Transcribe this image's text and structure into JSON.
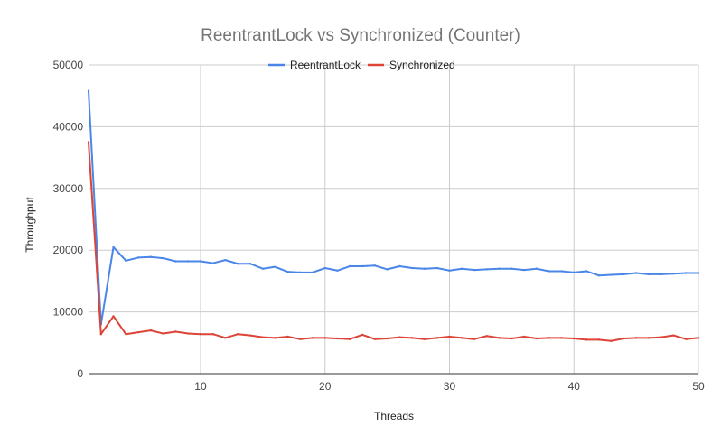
{
  "chart_data": {
    "type": "line",
    "title": "ReentrantLock vs Synchronized (Counter)",
    "xlabel": "Threads",
    "ylabel": "Throughput",
    "xlim": [
      1,
      50
    ],
    "ylim": [
      0,
      50000
    ],
    "x_ticks": [
      10,
      20,
      30,
      40,
      50
    ],
    "y_ticks": [
      0,
      10000,
      20000,
      30000,
      40000,
      50000
    ],
    "grid": true,
    "legend_position": "top-center",
    "x": [
      1,
      2,
      3,
      4,
      5,
      6,
      7,
      8,
      9,
      10,
      11,
      12,
      13,
      14,
      15,
      16,
      17,
      18,
      19,
      20,
      21,
      22,
      23,
      24,
      25,
      26,
      27,
      28,
      29,
      30,
      31,
      32,
      33,
      34,
      35,
      36,
      37,
      38,
      39,
      40,
      41,
      42,
      43,
      44,
      45,
      46,
      47,
      48,
      49,
      50
    ],
    "series": [
      {
        "name": "ReentrantLock",
        "color": "#4a86e8",
        "values": [
          45800,
          8000,
          20500,
          18300,
          18800,
          18900,
          18700,
          18200,
          18200,
          18200,
          17900,
          18400,
          17800,
          17800,
          17000,
          17300,
          16500,
          16400,
          16400,
          17100,
          16700,
          17400,
          17400,
          17500,
          16900,
          17400,
          17100,
          17000,
          17100,
          16700,
          17000,
          16800,
          16900,
          17000,
          17000,
          16800,
          17000,
          16600,
          16600,
          16400,
          16600,
          15900,
          16000,
          16100,
          16300,
          16100,
          16100,
          16200,
          16300,
          16300
        ]
      },
      {
        "name": "Synchronized",
        "color": "#db4437",
        "values": [
          37500,
          6400,
          9300,
          6400,
          6700,
          7000,
          6500,
          6800,
          6500,
          6400,
          6400,
          5800,
          6400,
          6200,
          5900,
          5800,
          6000,
          5600,
          5800,
          5800,
          5700,
          5600,
          6300,
          5600,
          5700,
          5900,
          5800,
          5600,
          5800,
          6000,
          5800,
          5600,
          6100,
          5800,
          5700,
          6000,
          5700,
          5800,
          5800,
          5700,
          5500,
          5500,
          5300,
          5700,
          5800,
          5800,
          5900,
          6200,
          5600,
          5800
        ]
      }
    ]
  }
}
